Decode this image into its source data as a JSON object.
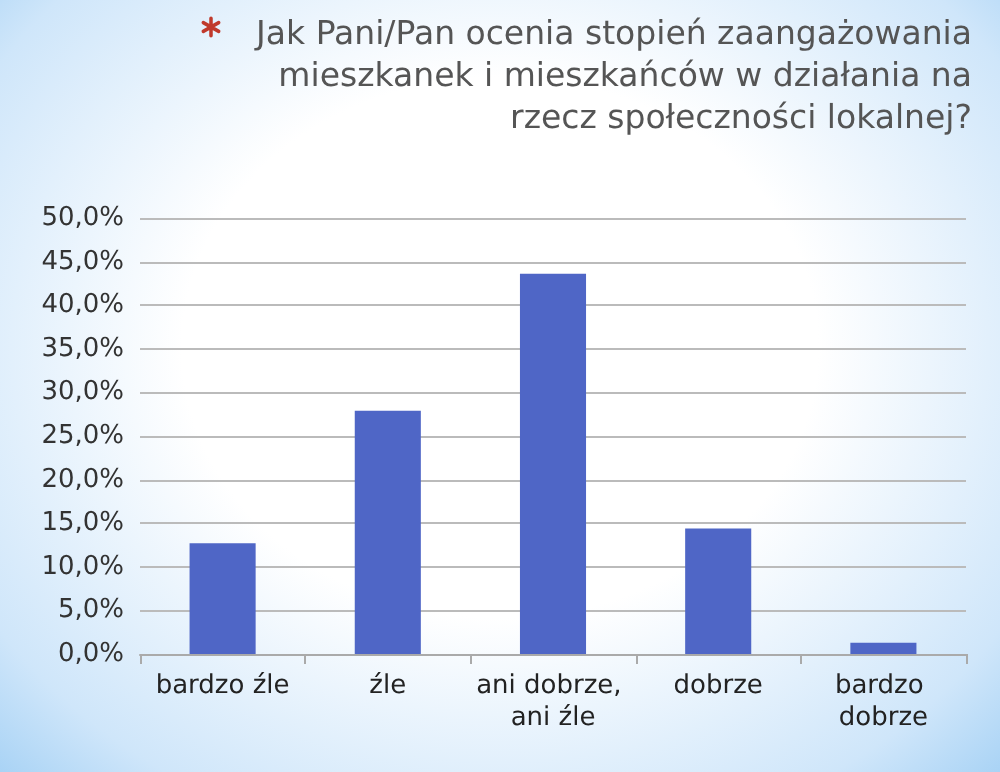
{
  "chart_data": {
    "type": "bar",
    "title": "Jak Pani/Pan ocenia stopień zaangażowania mieszkanek i mieszkańców w działania na rzecz społeczności lokalnej?",
    "categories": [
      "bardzo źle",
      "źle",
      "ani dobrze, ani źle",
      "dobrze",
      "bardzo dobrze"
    ],
    "values": [
      12.7,
      27.9,
      43.6,
      14.4,
      1.3
    ],
    "color": "#4f66c6",
    "ylim": [
      0,
      50
    ],
    "yticks": [
      {
        "value": 0,
        "label": "0,0%"
      },
      {
        "value": 5,
        "label": "5,0%"
      },
      {
        "value": 10,
        "label": "10,0%"
      },
      {
        "value": 15,
        "label": "15,0%"
      },
      {
        "value": 20,
        "label": "20,0%"
      },
      {
        "value": 25,
        "label": "25,0%"
      },
      {
        "value": 30,
        "label": "30,0%"
      },
      {
        "value": 35,
        "label": "35,0%"
      },
      {
        "value": 40,
        "label": "40,0%"
      },
      {
        "value": 45,
        "label": "45,0%"
      },
      {
        "value": 50,
        "label": "50,0%"
      }
    ],
    "grid": "y"
  }
}
